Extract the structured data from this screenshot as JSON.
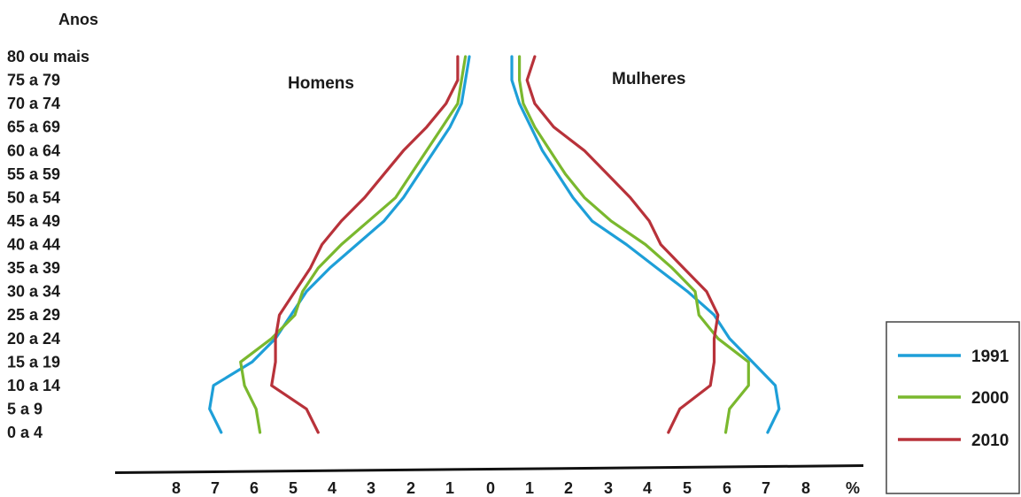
{
  "chart_data": {
    "type": "line",
    "subtype": "population-pyramid",
    "y_axis_title": "Anos",
    "x_unit": "%",
    "left_side_label": "Homens",
    "right_side_label": "Mulheres",
    "age_groups": [
      "0 a 4",
      "5 a 9",
      "10 a 14",
      "15 a 19",
      "20 a 24",
      "25 a 29",
      "30 a 34",
      "35 a 39",
      "40 a 44",
      "45 a 49",
      "50 a 54",
      "55 a 59",
      "60 a 64",
      "65 a 69",
      "70 a 74",
      "75 a 79",
      "80 ou mais"
    ],
    "x_ticks_left": [
      8,
      7,
      6,
      5,
      4,
      3,
      2,
      1
    ],
    "x_ticks_right": [
      0,
      1,
      2,
      3,
      4,
      5,
      6,
      7,
      8
    ],
    "xlim_each_side": [
      0,
      8
    ],
    "series": [
      {
        "name": "1991",
        "color": "#1e9fd8",
        "men": [
          6.8,
          7.1,
          7.0,
          6.0,
          5.4,
          5.0,
          4.6,
          4.0,
          3.3,
          2.6,
          2.1,
          1.7,
          1.3,
          0.9,
          0.6,
          0.5,
          0.4
        ],
        "women": [
          6.9,
          7.2,
          7.1,
          6.5,
          5.9,
          5.5,
          4.8,
          4.0,
          3.2,
          2.3,
          1.8,
          1.4,
          1.0,
          0.7,
          0.4,
          0.2,
          0.2
        ]
      },
      {
        "name": "2000",
        "color": "#7ab82e",
        "men": [
          5.8,
          5.9,
          6.2,
          6.3,
          5.5,
          4.9,
          4.7,
          4.3,
          3.7,
          3.0,
          2.3,
          1.9,
          1.5,
          1.1,
          0.7,
          0.6,
          0.5
        ],
        "women": [
          5.8,
          5.9,
          6.4,
          6.4,
          5.6,
          5.1,
          5.0,
          4.4,
          3.7,
          2.8,
          2.1,
          1.6,
          1.2,
          0.8,
          0.5,
          0.4,
          0.4
        ]
      },
      {
        "name": "2010",
        "color": "#b8323a",
        "men": [
          4.3,
          4.6,
          5.5,
          5.4,
          5.4,
          5.3,
          4.9,
          4.5,
          4.2,
          3.7,
          3.1,
          2.6,
          2.1,
          1.5,
          1.0,
          0.7,
          0.7
        ],
        "women": [
          4.3,
          4.6,
          5.4,
          5.5,
          5.5,
          5.6,
          5.3,
          4.7,
          4.1,
          3.8,
          3.3,
          2.7,
          2.1,
          1.3,
          0.8,
          0.6,
          0.8
        ]
      }
    ],
    "legend_position": "bottom-right",
    "grid": false
  }
}
